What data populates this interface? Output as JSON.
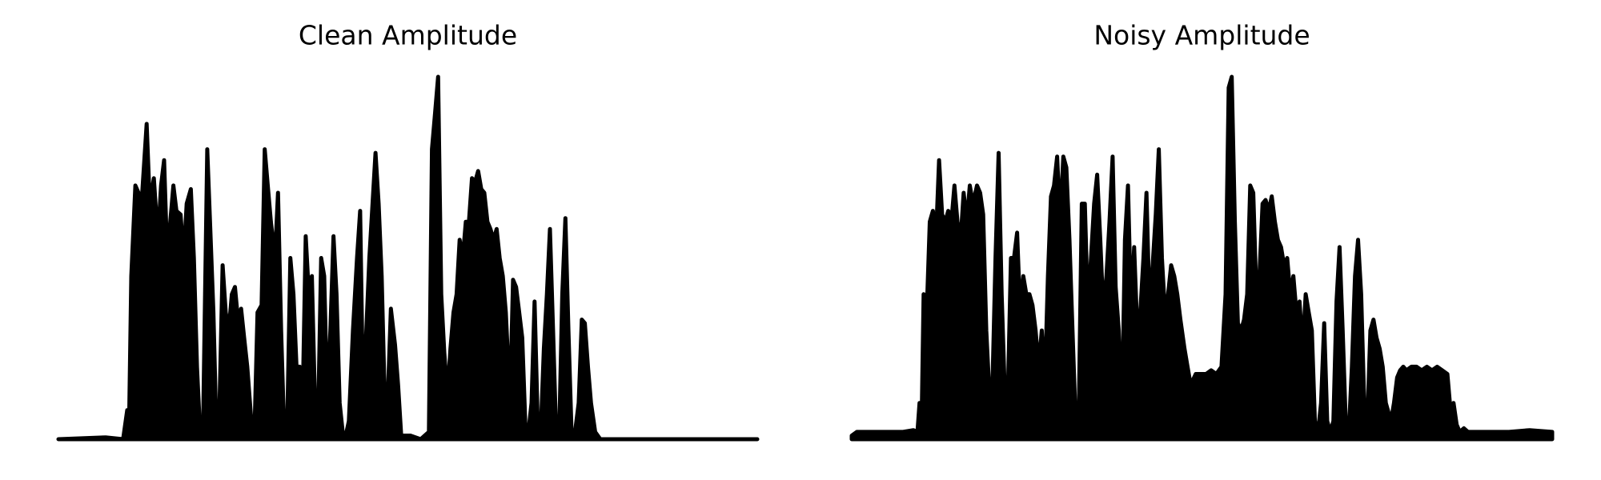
{
  "chart_data": [
    {
      "type": "line",
      "title": "Clean Amplitude",
      "color": "#000000",
      "xlim": [
        0,
        681
      ],
      "ylim": [
        0,
        1
      ],
      "x": [
        0,
        46,
        63,
        67,
        69,
        71,
        75,
        78,
        81,
        86,
        89,
        93,
        97,
        100,
        103,
        106,
        109,
        112,
        115,
        119,
        122,
        125,
        129,
        132,
        135,
        138,
        141,
        145,
        148,
        151,
        154,
        157,
        160,
        163,
        166,
        169,
        172,
        175,
        178,
        181,
        184,
        188,
        191,
        194,
        198,
        201,
        204,
        207,
        211,
        214,
        217,
        220,
        223,
        226,
        229,
        232,
        235,
        238,
        241,
        244,
        247,
        250,
        253,
        256,
        259,
        262,
        265,
        268,
        271,
        274,
        277,
        280,
        283,
        287,
        291,
        294,
        297,
        300,
        303,
        309,
        312,
        315,
        318,
        321,
        324,
        328,
        331,
        334,
        339,
        343,
        353,
        361,
        364,
        367,
        370,
        373,
        376,
        379,
        382,
        385,
        388,
        391,
        394,
        397,
        400,
        403,
        406,
        409,
        412,
        415,
        418,
        421,
        424,
        427,
        430,
        433,
        436,
        440,
        443,
        446,
        449,
        452,
        455,
        458,
        461,
        464,
        467,
        470,
        473,
        476,
        479,
        482,
        485,
        488,
        491,
        494,
        497,
        500,
        503,
        507,
        510,
        513,
        516,
        519,
        523,
        528,
        681
      ],
      "values": [
        0,
        0.005,
        0,
        0.08,
        0.08,
        0.45,
        0.7,
        0.68,
        0.65,
        0.87,
        0.65,
        0.72,
        0.55,
        0.7,
        0.77,
        0.5,
        0.6,
        0.7,
        0.63,
        0.62,
        0.5,
        0.65,
        0.69,
        0.5,
        0.2,
        0.02,
        0.05,
        0.8,
        0.58,
        0.35,
        0.02,
        0.1,
        0.48,
        0.35,
        0.3,
        0.4,
        0.42,
        0.33,
        0.36,
        0.28,
        0.2,
        0.05,
        0.02,
        0.35,
        0.37,
        0.8,
        0.7,
        0.6,
        0.5,
        0.68,
        0.3,
        0.02,
        0.05,
        0.5,
        0.4,
        0.2,
        0.2,
        0.1,
        0.56,
        0.4,
        0.45,
        0.1,
        0.05,
        0.5,
        0.45,
        0.1,
        0.3,
        0.56,
        0.4,
        0.1,
        0.02,
        0.01,
        0.05,
        0.3,
        0.5,
        0.63,
        0.1,
        0.3,
        0.5,
        0.79,
        0.65,
        0.45,
        0.1,
        0.12,
        0.36,
        0.26,
        0.15,
        0.01,
        0.01,
        0.01,
        0,
        0.02,
        0.8,
        0.9,
        1.0,
        0.4,
        0.24,
        0.12,
        0.25,
        0.35,
        0.4,
        0.55,
        0.5,
        0.6,
        0.6,
        0.72,
        0.71,
        0.74,
        0.69,
        0.68,
        0.6,
        0.58,
        0.55,
        0.58,
        0.5,
        0.45,
        0.35,
        0.1,
        0.44,
        0.42,
        0.35,
        0.28,
        0.04,
        0.02,
        0.1,
        0.38,
        0.05,
        0.02,
        0.25,
        0.4,
        0.58,
        0.3,
        0.02,
        0.02,
        0.4,
        0.61,
        0.3,
        0.02,
        0.01,
        0.1,
        0.33,
        0.32,
        0.2,
        0.1,
        0.02,
        0,
        0
      ]
    },
    {
      "type": "line",
      "title": "Noisy Amplitude",
      "color": "#000000",
      "xlim": [
        0,
        682
      ],
      "ylim": [
        0,
        1
      ],
      "x": [
        0,
        5,
        50,
        60,
        64,
        66,
        68,
        70,
        73,
        76,
        79,
        82,
        85,
        88,
        91,
        94,
        97,
        100,
        103,
        106,
        109,
        112,
        115,
        118,
        122,
        125,
        128,
        131,
        134,
        137,
        140,
        143,
        146,
        149,
        152,
        155,
        158,
        161,
        164,
        167,
        170,
        173,
        176,
        179,
        182,
        185,
        188,
        191,
        194,
        197,
        200,
        203,
        206,
        209,
        212,
        215,
        218,
        221,
        224,
        227,
        230,
        233,
        236,
        239,
        242,
        245,
        248,
        251,
        254,
        257,
        260,
        263,
        266,
        269,
        272,
        275,
        278,
        281,
        284,
        287,
        290,
        293,
        296,
        299,
        302,
        305,
        308,
        311,
        314,
        317,
        320,
        324,
        327,
        330,
        335,
        340,
        345,
        350,
        355,
        360,
        364,
        367,
        370,
        373,
        376,
        379,
        382,
        385,
        388,
        391,
        394,
        397,
        400,
        403,
        406,
        409,
        412,
        415,
        418,
        421,
        424,
        427,
        430,
        433,
        436,
        439,
        442,
        445,
        448,
        451,
        454,
        457,
        460,
        463,
        466,
        469,
        472,
        475,
        478,
        481,
        484,
        487,
        490,
        493,
        496,
        499,
        502,
        505,
        508,
        511,
        514,
        517,
        520,
        525,
        528,
        531,
        534,
        537,
        540,
        545,
        550,
        555,
        560,
        565,
        570,
        575,
        580,
        583,
        586,
        589,
        592,
        596,
        600,
        620,
        640,
        660,
        682
      ],
      "values": [
        0.01,
        0.02,
        0.02,
        0.025,
        0.02,
        0.1,
        0.03,
        0.4,
        0.35,
        0.6,
        0.63,
        0.55,
        0.77,
        0.62,
        0.6,
        0.63,
        0.6,
        0.7,
        0.6,
        0.55,
        0.68,
        0.6,
        0.7,
        0.65,
        0.7,
        0.68,
        0.62,
        0.3,
        0.13,
        0.15,
        0.5,
        0.79,
        0.4,
        0.13,
        0.12,
        0.5,
        0.5,
        0.57,
        0.35,
        0.45,
        0.4,
        0.4,
        0.37,
        0.3,
        0.2,
        0.3,
        0.15,
        0.45,
        0.67,
        0.7,
        0.78,
        0.6,
        0.78,
        0.75,
        0.55,
        0.3,
        0.05,
        0.05,
        0.65,
        0.65,
        0.35,
        0.5,
        0.65,
        0.73,
        0.55,
        0.35,
        0.45,
        0.6,
        0.78,
        0.42,
        0.3,
        0.05,
        0.55,
        0.7,
        0.35,
        0.53,
        0.3,
        0.35,
        0.5,
        0.68,
        0.35,
        0.48,
        0.62,
        0.8,
        0.5,
        0.35,
        0.4,
        0.48,
        0.45,
        0.4,
        0.33,
        0.25,
        0.2,
        0.15,
        0.18,
        0.18,
        0.18,
        0.19,
        0.18,
        0.2,
        0.4,
        0.97,
        1.0,
        0.6,
        0.32,
        0.3,
        0.33,
        0.4,
        0.7,
        0.68,
        0.4,
        0.45,
        0.65,
        0.66,
        0.63,
        0.67,
        0.6,
        0.55,
        0.53,
        0.48,
        0.5,
        0.4,
        0.45,
        0.35,
        0.38,
        0.25,
        0.4,
        0.35,
        0.3,
        0.05,
        0.02,
        0.1,
        0.32,
        0.05,
        0.02,
        0.05,
        0.38,
        0.53,
        0.3,
        0.05,
        0.02,
        0.2,
        0.45,
        0.55,
        0.4,
        0.1,
        0.05,
        0.3,
        0.33,
        0.28,
        0.25,
        0.2,
        0.1,
        0.05,
        0.1,
        0.17,
        0.19,
        0.2,
        0.19,
        0.2,
        0.2,
        0.19,
        0.2,
        0.19,
        0.2,
        0.19,
        0.18,
        0.08,
        0.1,
        0.04,
        0.02,
        0.03,
        0.02,
        0.02,
        0.02,
        0.025,
        0.02
      ]
    }
  ]
}
